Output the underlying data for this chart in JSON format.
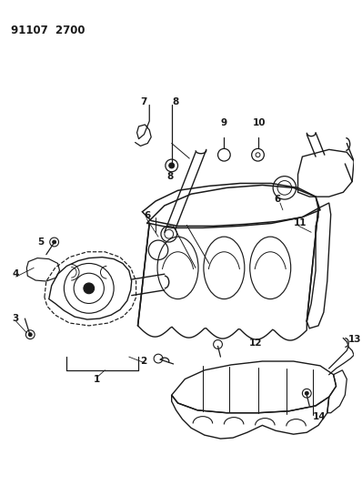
{
  "title": "91107  2700",
  "background_color": "#ffffff",
  "line_color": "#1a1a1a",
  "figsize": [
    3.98,
    5.33
  ],
  "dpi": 100
}
